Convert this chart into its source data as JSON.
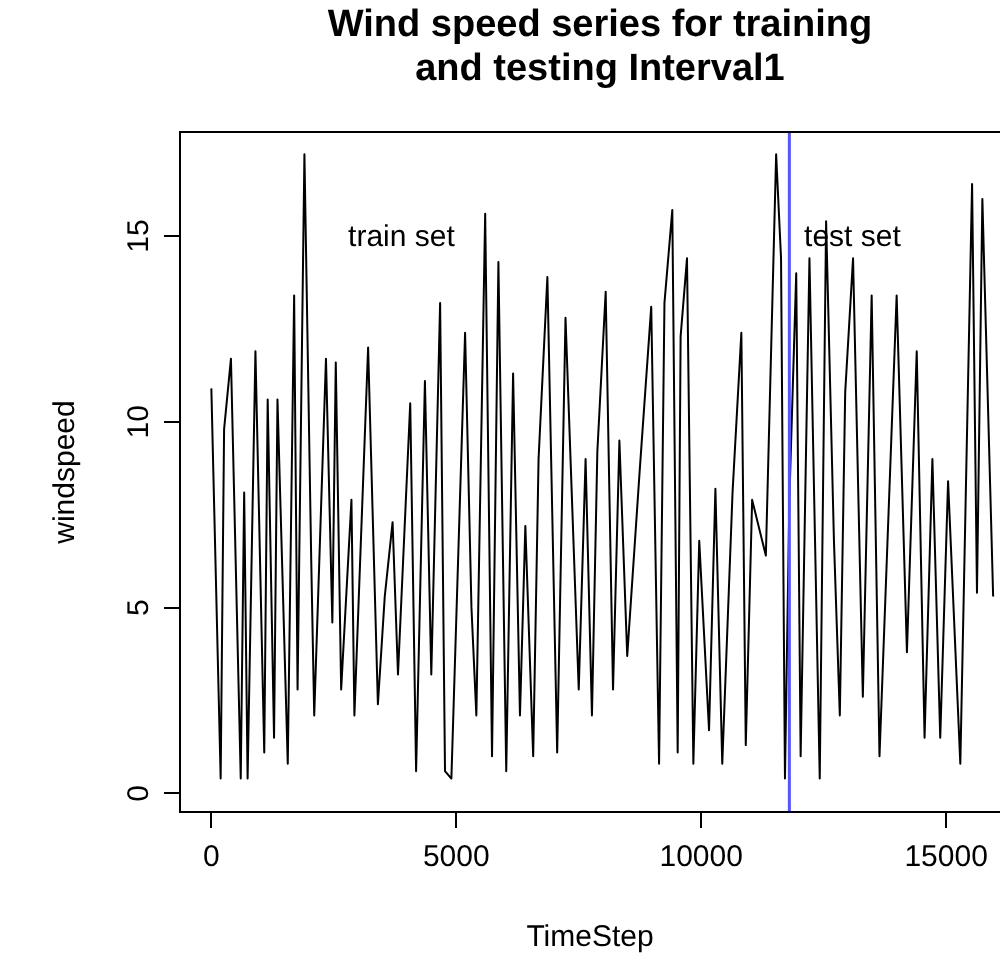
{
  "chart_data": {
    "type": "line",
    "title": "Wind speed series for training and testing Interval1",
    "xlabel": "TimeStep",
    "ylabel": "windspeed",
    "x": [
      0,
      190,
      260,
      400,
      600,
      670,
      740,
      900,
      1080,
      1150,
      1280,
      1350,
      1560,
      1690,
      1760,
      1900,
      2040,
      2100,
      2340,
      2470,
      2540,
      2650,
      2860,
      2920,
      3200,
      3400,
      3540,
      3700,
      3810,
      4060,
      4180,
      4360,
      4490,
      4670,
      4770,
      4900,
      5180,
      5310,
      5410,
      5590,
      5730,
      5860,
      6020,
      6160,
      6300,
      6410,
      6570,
      6680,
      6860,
      7060,
      7230,
      7500,
      7640,
      7770,
      7880,
      8050,
      8200,
      8330,
      8490,
      8740,
      8980,
      9140,
      9250,
      9410,
      9520,
      9580,
      9710,
      9840,
      9960,
      10160,
      10290,
      10430,
      10640,
      10820,
      10910,
      11040,
      11320,
      11530,
      11630,
      11710,
      11800,
      11940,
      12030,
      12210,
      12420,
      12550,
      12710,
      12830,
      12940,
      13100,
      13300,
      13480,
      13640,
      13990,
      14200,
      14400,
      14560,
      14720,
      14880,
      15040,
      15290,
      15530,
      15630,
      15740,
      15960
    ],
    "series": [
      {
        "color": "#000000",
        "values": [
          10.9,
          0.4,
          9.8,
          11.7,
          0.4,
          8.1,
          0.4,
          11.9,
          1.1,
          10.6,
          1.5,
          10.6,
          0.8,
          13.4,
          2.8,
          17.2,
          6.2,
          2.1,
          11.7,
          4.6,
          11.6,
          2.8,
          7.9,
          2.1,
          12.0,
          2.4,
          5.3,
          7.3,
          3.2,
          10.5,
          0.6,
          11.1,
          3.2,
          13.2,
          0.6,
          0.4,
          12.4,
          5.0,
          2.1,
          15.6,
          1.0,
          14.3,
          0.6,
          11.3,
          2.1,
          7.2,
          1.0,
          9.0,
          13.9,
          1.1,
          12.8,
          2.8,
          9.0,
          2.1,
          9.2,
          13.5,
          2.8,
          9.5,
          3.7,
          8.6,
          13.1,
          0.8,
          13.2,
          15.7,
          1.1,
          12.3,
          14.4,
          0.8,
          6.8,
          1.7,
          8.2,
          0.8,
          8.1,
          12.4,
          1.3,
          7.9,
          6.4,
          17.2,
          14.4,
          0.4,
          7.9,
          14.0,
          1.0,
          14.4,
          0.4,
          15.4,
          6.8,
          2.1,
          10.8,
          14.4,
          2.6,
          13.4,
          1.0,
          13.4,
          3.8,
          11.9,
          1.5,
          9.0,
          1.5,
          8.4,
          0.8,
          16.4,
          5.4,
          16.0,
          5.3
        ]
      }
    ],
    "xlim": [
      -640,
      16100
    ],
    "ylim": [
      -0.5,
      17.8
    ],
    "xticks": [
      0,
      5000,
      10000,
      15000
    ],
    "yticks": [
      0,
      5,
      10,
      15
    ],
    "ref_lines": [
      {
        "axis": "x",
        "value": 11800,
        "color": "#5555ff"
      }
    ],
    "annotations": [
      "train set",
      "test set"
    ]
  }
}
